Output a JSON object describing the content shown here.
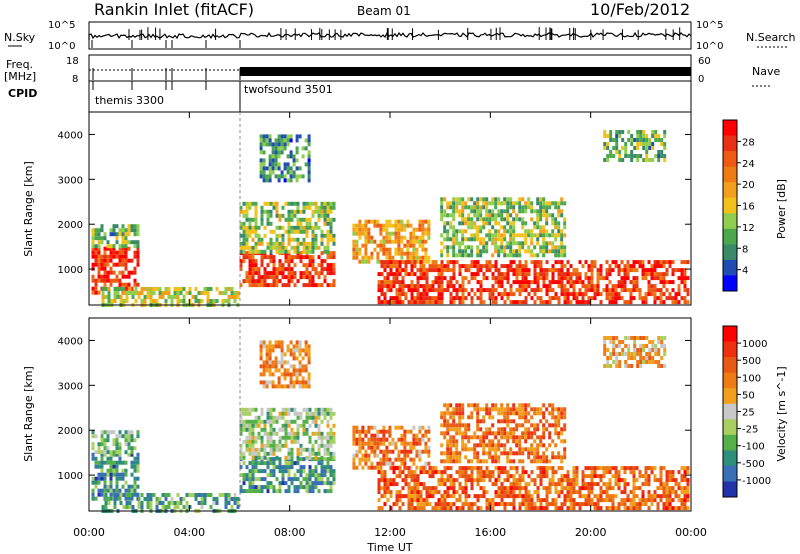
{
  "header": {
    "station": "Rankin Inlet (fitACF)",
    "beam": "Beam 01",
    "date": "10/Feb/2012"
  },
  "left_labels": {
    "nsky": "N.Sky",
    "freq": "Freq.",
    "freq_unit": "[MHz]",
    "cpid": "CPID"
  },
  "right_labels": {
    "nsearch": "N.Search",
    "nave": "Nave"
  },
  "nsky_ticks": [
    "10^5",
    "10^0"
  ],
  "freq_ticks": [
    "18",
    "8"
  ],
  "nave_ticks": [
    "60",
    "0"
  ],
  "cpid_programs": [
    {
      "name": "themis 3300",
      "start_hour": 0.0
    },
    {
      "name": "twofsound 3501",
      "start_hour": 6.0
    }
  ],
  "colors": {
    "power": [
      "#0000ff",
      "#1f4db3",
      "#3a8a6a",
      "#4da84d",
      "#8fce4f",
      "#f2c21b",
      "#f2a01b",
      "#ee7b14",
      "#ee5a14",
      "#e83015",
      "#ff0000"
    ],
    "velocity": [
      "#2233aa",
      "#3a6fb8",
      "#2f8f7a",
      "#55b04a",
      "#a8d060",
      "#c8c8c8",
      "#f2a01b",
      "#ee7b14",
      "#e85a14",
      "#ee3010",
      "#ff0000"
    ]
  },
  "chart_data": [
    {
      "type": "heatmap",
      "name": "power",
      "xlabel": "Time UT",
      "ylabel": "Slant Range [km]",
      "x_ticks": [
        "00:00",
        "04:00",
        "08:00",
        "12:00",
        "16:00",
        "20:00",
        "00:00"
      ],
      "xlim": [
        0,
        24
      ],
      "ylim": [
        200,
        4500
      ],
      "y_ticks": [
        1000,
        2000,
        3000,
        4000
      ],
      "colorbar_label": "Power [dB]",
      "colorbar_ticks": [
        "4",
        "8",
        "12",
        "16",
        "20",
        "24",
        "28"
      ],
      "echo_regions": [
        {
          "t0": 0.1,
          "t1": 2.0,
          "r0": 500,
          "r1": 1500,
          "level": 0.85
        },
        {
          "t0": 0.1,
          "t1": 2.0,
          "r0": 1500,
          "r1": 2000,
          "level": 0.35
        },
        {
          "t0": 0.5,
          "t1": 6.0,
          "r0": 200,
          "r1": 600,
          "level": 0.45
        },
        {
          "t0": 6.0,
          "t1": 9.8,
          "r0": 600,
          "r1": 1400,
          "level": 0.85
        },
        {
          "t0": 6.0,
          "t1": 9.8,
          "r0": 1400,
          "r1": 2500,
          "level": 0.4
        },
        {
          "t0": 10.5,
          "t1": 13.5,
          "r0": 1200,
          "r1": 2100,
          "level": 0.6
        },
        {
          "t0": 11.5,
          "t1": 23.9,
          "r0": 300,
          "r1": 1200,
          "level": 0.85
        },
        {
          "t0": 14.0,
          "t1": 19.0,
          "r0": 1300,
          "r1": 2600,
          "level": 0.4
        },
        {
          "t0": 20.5,
          "t1": 23.0,
          "r0": 3400,
          "r1": 4100,
          "level": 0.35
        },
        {
          "t0": 6.8,
          "t1": 8.8,
          "r0": 3000,
          "r1": 4000,
          "level": 0.25
        }
      ]
    },
    {
      "type": "heatmap",
      "name": "velocity",
      "xlabel": "Time UT",
      "ylabel": "Slant Range [km]",
      "x_ticks": [
        "00:00",
        "04:00",
        "08:00",
        "12:00",
        "16:00",
        "20:00",
        "00:00"
      ],
      "xlim": [
        0,
        24
      ],
      "ylim": [
        200,
        4500
      ],
      "y_ticks": [
        1000,
        2000,
        3000,
        4000
      ],
      "colorbar_label": "Velocity [m s^-1]",
      "colorbar_ticks": [
        "1000",
        "500",
        "100",
        "50",
        "25",
        "-25",
        "-100",
        "-500",
        "-1000"
      ],
      "echo_regions": [
        {
          "t0": 0.1,
          "t1": 2.0,
          "r0": 500,
          "r1": 1500,
          "level": 0.25
        },
        {
          "t0": 0.1,
          "t1": 2.0,
          "r0": 1500,
          "r1": 2000,
          "level": 0.35
        },
        {
          "t0": 0.5,
          "t1": 6.0,
          "r0": 200,
          "r1": 600,
          "level": 0.3
        },
        {
          "t0": 6.0,
          "t1": 9.8,
          "r0": 600,
          "r1": 1400,
          "level": 0.25
        },
        {
          "t0": 6.0,
          "t1": 9.8,
          "r0": 1400,
          "r1": 2500,
          "level": 0.4
        },
        {
          "t0": 10.5,
          "t1": 13.5,
          "r0": 1200,
          "r1": 2100,
          "level": 0.7
        },
        {
          "t0": 11.5,
          "t1": 23.9,
          "r0": 300,
          "r1": 1200,
          "level": 0.75
        },
        {
          "t0": 14.0,
          "t1": 19.0,
          "r0": 1300,
          "r1": 2600,
          "level": 0.72
        },
        {
          "t0": 20.5,
          "t1": 23.0,
          "r0": 3400,
          "r1": 4100,
          "level": 0.6
        },
        {
          "t0": 6.8,
          "t1": 8.8,
          "r0": 3000,
          "r1": 4000,
          "level": 0.65
        }
      ]
    }
  ]
}
